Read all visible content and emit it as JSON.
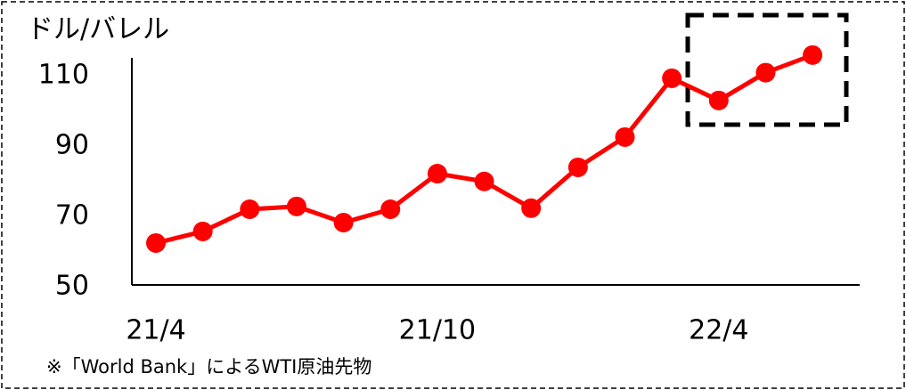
{
  "chart_data": {
    "type": "line",
    "y_label": "ドル/バレル",
    "note": "※「World Bank」によるWTI原油先物",
    "categories": [
      "21/4",
      null,
      null,
      null,
      null,
      null,
      "21/10",
      null,
      null,
      null,
      null,
      null,
      "22/4",
      null,
      null
    ],
    "series": [
      {
        "name": "WTI",
        "color": "#ff0000",
        "values": [
          61.9,
          65.2,
          71.5,
          72.3,
          67.7,
          71.5,
          81.6,
          79.4,
          71.8,
          83.4,
          92,
          108.7,
          102.4,
          110.3,
          115.3
        ]
      }
    ],
    "ylim": [
      50,
      115
    ],
    "yticks": [
      50,
      70,
      90,
      110
    ],
    "grid": false
  }
}
